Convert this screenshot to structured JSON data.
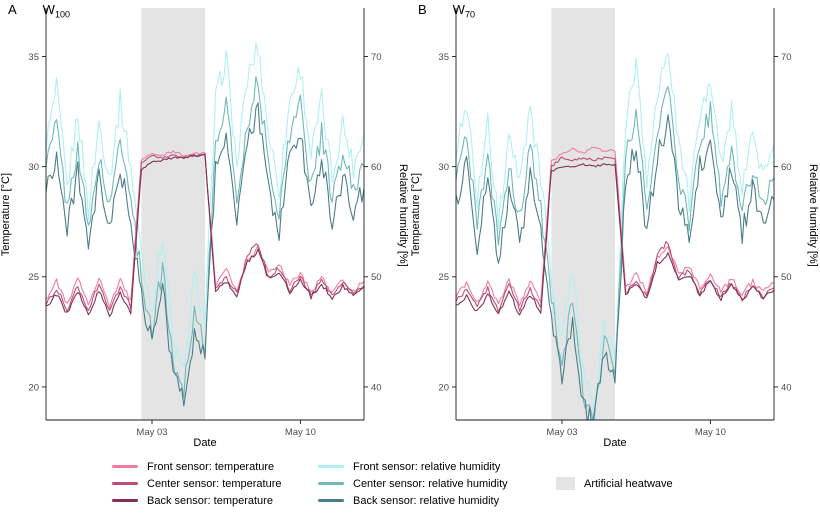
{
  "axes": {
    "left_title": "Temperature [°C]",
    "right_title": "Relative humidity [%]",
    "x_title": "Date",
    "left_ticks": [
      20,
      25,
      30,
      35
    ],
    "right_ticks": [
      40,
      50,
      60,
      70
    ],
    "x_tick_labels": [
      "May 03",
      "May 10"
    ]
  },
  "legend": {
    "columns": [
      {
        "items": [
          {
            "label": "Front sensor: temperature",
            "color": "#f07ca4",
            "type": "line"
          },
          {
            "label": "Center sensor: temperature",
            "color": "#bc4d78",
            "type": "line"
          },
          {
            "label": "Back sensor: temperature",
            "color": "#833154",
            "type": "line"
          }
        ]
      },
      {
        "items": [
          {
            "label": "Front sensor: relative humidity",
            "color": "#b0f0f2",
            "type": "line"
          },
          {
            "label": "Center sensor: relative humidity",
            "color": "#6fb9ba",
            "type": "line"
          },
          {
            "label": "Back sensor: relative humidity",
            "color": "#4c7e87",
            "type": "line"
          }
        ]
      },
      {
        "items": [
          {
            "label": "Artificial heatwave",
            "color": "#e4e4e4",
            "type": "box"
          }
        ]
      }
    ]
  },
  "chart_data": [
    {
      "type": "line",
      "panel_label": "A",
      "watering_label": "W",
      "watering_sub": "100",
      "title": "W100",
      "x_unit": "days since Apr 28 (May 03 = day 5, May 10 = day 12)",
      "x_range": [
        0,
        15
      ],
      "x_step": 0.5,
      "x_ticks": [
        {
          "day": 5,
          "label": "May 03"
        },
        {
          "day": 12,
          "label": "May 10"
        }
      ],
      "temp_axis_range": [
        18.5,
        37.2
      ],
      "humidity_axis_range": [
        37,
        74.4
      ],
      "temp_ticks": [
        20,
        25,
        30,
        35
      ],
      "humidity_ticks": [
        40,
        50,
        60,
        70
      ],
      "heatwave_band_days": [
        4.5,
        7.5
      ],
      "heatwave_color": "#e4e4e4",
      "series": [
        {
          "name": "Front sensor: relative humidity",
          "axis": "humidity",
          "color": "#b0f0f2",
          "noise": 2.2,
          "values": [
            62,
            67,
            58,
            65,
            56,
            64,
            59,
            66,
            60,
            52,
            47,
            54,
            44,
            41,
            50,
            46,
            66,
            70,
            60,
            68,
            71,
            63,
            58,
            66,
            69,
            61,
            66,
            59,
            64,
            60,
            63
          ]
        },
        {
          "name": "Center sensor: relative humidity",
          "axis": "humidity",
          "color": "#6fb9ba",
          "noise": 2.0,
          "values": [
            60,
            64,
            56,
            62,
            54,
            61,
            56,
            63,
            57,
            50,
            45,
            51,
            42,
            40,
            47,
            44,
            62,
            66,
            57,
            64,
            68,
            60,
            56,
            63,
            66,
            58,
            63,
            57,
            61,
            58,
            60
          ]
        },
        {
          "name": "Back sensor: relative humidity",
          "axis": "humidity",
          "color": "#4c7e87",
          "noise": 2.0,
          "values": [
            58,
            61,
            54,
            60,
            52,
            59,
            54,
            60,
            55,
            48,
            44,
            49,
            41,
            39,
            45,
            43,
            60,
            63,
            55,
            62,
            65,
            58,
            54,
            61,
            63,
            56,
            61,
            55,
            59,
            56,
            58
          ]
        },
        {
          "name": "Front sensor: temperature",
          "axis": "temperature",
          "color": "#f07ca4",
          "noise": 0.25,
          "values": [
            24.0,
            24.8,
            23.7,
            24.9,
            23.8,
            25.0,
            23.6,
            24.9,
            23.9,
            30.3,
            30.6,
            30.5,
            30.7,
            30.5,
            30.6,
            30.6,
            24.6,
            25.3,
            24.4,
            25.8,
            26.3,
            25.2,
            25.6,
            24.6,
            25.2,
            24.3,
            25.0,
            24.2,
            24.9,
            24.3,
            24.8
          ]
        },
        {
          "name": "Center sensor: temperature",
          "axis": "temperature",
          "color": "#bc4d78",
          "noise": 0.25,
          "values": [
            23.8,
            24.5,
            23.5,
            24.6,
            23.5,
            24.7,
            23.4,
            24.6,
            23.6,
            30.1,
            30.5,
            30.4,
            30.5,
            30.4,
            30.5,
            30.5,
            24.4,
            25.0,
            24.2,
            26.0,
            26.5,
            25.0,
            25.4,
            24.4,
            25.0,
            24.2,
            24.8,
            24.1,
            24.7,
            24.2,
            24.6
          ]
        },
        {
          "name": "Back sensor: temperature",
          "axis": "temperature",
          "color": "#833154",
          "noise": 0.22,
          "values": [
            23.6,
            24.2,
            23.3,
            24.3,
            23.3,
            24.4,
            23.2,
            24.3,
            23.4,
            29.9,
            30.2,
            30.3,
            30.4,
            30.4,
            30.5,
            30.5,
            24.3,
            24.8,
            24.1,
            25.7,
            26.2,
            24.9,
            25.2,
            24.3,
            24.9,
            24.1,
            24.7,
            24.0,
            24.6,
            24.1,
            24.5
          ]
        }
      ]
    },
    {
      "type": "line",
      "panel_label": "B",
      "watering_label": "W",
      "watering_sub": "70",
      "title": "W70",
      "x_unit": "days since Apr 28 (May 03 = day 5, May 10 = day 12)",
      "x_range": [
        0,
        15
      ],
      "x_step": 0.5,
      "x_ticks": [
        {
          "day": 5,
          "label": "May 03"
        },
        {
          "day": 12,
          "label": "May 10"
        }
      ],
      "temp_axis_range": [
        18.5,
        37.2
      ],
      "humidity_axis_range": [
        37,
        74.4
      ],
      "temp_ticks": [
        20,
        25,
        30,
        35
      ],
      "humidity_ticks": [
        40,
        50,
        60,
        70
      ],
      "heatwave_band_days": [
        4.5,
        7.5
      ],
      "heatwave_color": "#e4e4e4",
      "series": [
        {
          "name": "Front sensor: relative humidity",
          "axis": "humidity",
          "color": "#b0f0f2",
          "noise": 2.2,
          "values": [
            61,
            66,
            57,
            64,
            55,
            63,
            58,
            65,
            59,
            50,
            44,
            51,
            41,
            38,
            46,
            42,
            64,
            69,
            59,
            67,
            71,
            62,
            57,
            65,
            68,
            60,
            65,
            58,
            63,
            59,
            62
          ]
        },
        {
          "name": "Center sensor: relative humidity",
          "axis": "humidity",
          "color": "#6fb9ba",
          "noise": 2.0,
          "values": [
            59,
            63,
            55,
            61,
            53,
            60,
            55,
            62,
            56,
            48,
            42,
            48,
            39,
            37,
            44,
            41,
            61,
            65,
            56,
            63,
            67,
            59,
            55,
            62,
            65,
            57,
            62,
            56,
            60,
            57,
            59
          ]
        },
        {
          "name": "Back sensor: relative humidity",
          "axis": "humidity",
          "color": "#4c7e87",
          "noise": 2.0,
          "values": [
            57,
            60,
            53,
            59,
            51,
            58,
            53,
            59,
            54,
            46,
            41,
            46,
            38,
            37,
            43,
            40,
            59,
            62,
            54,
            61,
            64,
            57,
            53,
            60,
            62,
            55,
            60,
            54,
            58,
            55,
            57
          ]
        },
        {
          "name": "Front sensor: temperature",
          "axis": "temperature",
          "color": "#f07ca4",
          "noise": 0.25,
          "values": [
            24.1,
            24.7,
            23.8,
            24.8,
            23.7,
            24.9,
            23.7,
            24.8,
            23.8,
            30.2,
            30.6,
            30.8,
            30.6,
            30.9,
            30.7,
            30.8,
            24.5,
            25.1,
            24.3,
            25.9,
            26.4,
            25.1,
            25.5,
            24.5,
            25.1,
            24.3,
            24.9,
            24.2,
            24.8,
            24.3,
            24.7
          ]
        },
        {
          "name": "Center sensor: temperature",
          "axis": "temperature",
          "color": "#bc4d78",
          "noise": 0.25,
          "values": [
            23.9,
            24.4,
            23.6,
            24.5,
            23.5,
            24.6,
            23.5,
            24.5,
            23.6,
            30.0,
            30.4,
            30.3,
            30.4,
            30.3,
            30.4,
            30.4,
            24.3,
            24.9,
            24.1,
            26.0,
            26.6,
            24.9,
            25.3,
            24.3,
            24.9,
            24.1,
            24.7,
            24.0,
            24.6,
            24.1,
            24.5
          ]
        },
        {
          "name": "Back sensor: temperature",
          "axis": "temperature",
          "color": "#833154",
          "noise": 0.22,
          "values": [
            23.7,
            24.1,
            23.4,
            24.2,
            23.3,
            24.3,
            23.3,
            24.2,
            23.4,
            29.8,
            30.0,
            30.0,
            30.1,
            30.0,
            30.1,
            30.0,
            24.2,
            24.7,
            24.0,
            25.6,
            26.1,
            24.8,
            25.1,
            24.2,
            24.8,
            24.0,
            24.6,
            23.9,
            24.5,
            24.0,
            24.4
          ]
        }
      ]
    }
  ]
}
